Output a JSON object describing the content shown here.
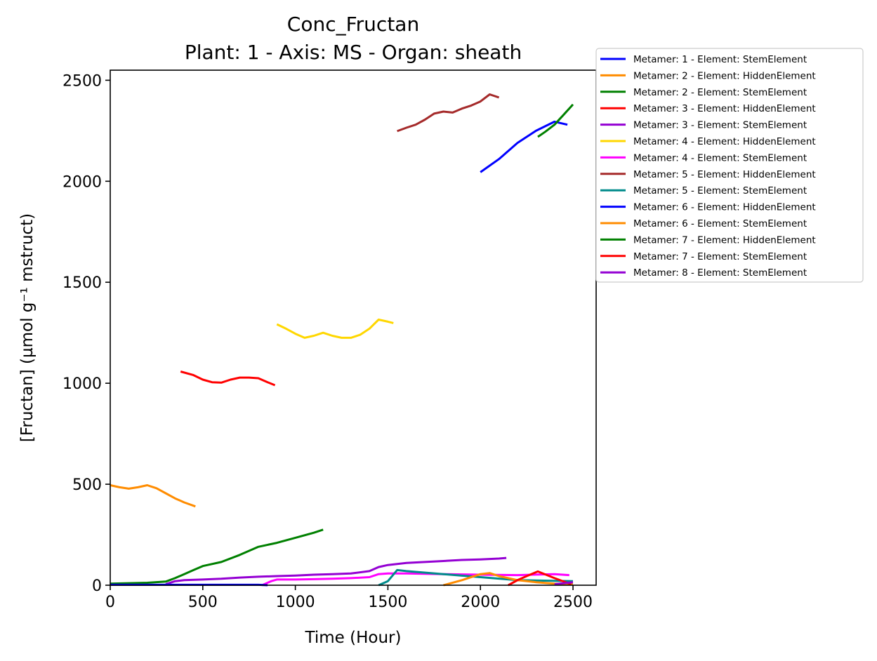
{
  "chart_data": {
    "type": "line",
    "title": "Conc_Fructan",
    "subtitle": "Plant: 1 - Axis: MS - Organ: sheath",
    "xlabel": "Time (Hour)",
    "ylabel": "[Fructan] (µmol g⁻¹ mstruct)",
    "xlim": [
      0,
      2625
    ],
    "ylim": [
      0,
      2550
    ],
    "xticks": [
      0,
      500,
      1000,
      1500,
      2000,
      2500
    ],
    "yticks": [
      0,
      500,
      1000,
      1500,
      2000,
      2500
    ],
    "grid": false,
    "legend_position": "outside-top-right",
    "series": [
      {
        "name": "Metamer: 1 - Element: StemElement",
        "color": "#0000ff",
        "x": [
          2000,
          2100,
          2200,
          2300,
          2400,
          2470
        ],
        "y": [
          2045,
          2110,
          2190,
          2250,
          2295,
          2280
        ]
      },
      {
        "name": "Metamer: 2 - Element: HiddenElement",
        "color": "#ff8c00",
        "x": [
          0,
          50,
          100,
          150,
          200,
          250,
          300,
          350,
          400,
          460
        ],
        "y": [
          495,
          485,
          478,
          485,
          495,
          480,
          455,
          430,
          410,
          390
        ]
      },
      {
        "name": "Metamer: 2 - Element: StemElement",
        "color": "#008000",
        "x": [
          0,
          100,
          200,
          300,
          350,
          400,
          450,
          500,
          600,
          700,
          800,
          900,
          1000,
          1100,
          1150
        ],
        "y": [
          8,
          10,
          12,
          18,
          35,
          55,
          75,
          95,
          115,
          150,
          190,
          210,
          235,
          260,
          275
        ]
      },
      {
        "name": "Metamer: 3 - Element: HiddenElement",
        "color": "#ff0000",
        "x": [
          380,
          450,
          500,
          550,
          600,
          650,
          700,
          750,
          800,
          850,
          890
        ],
        "y": [
          1058,
          1040,
          1018,
          1005,
          1003,
          1018,
          1028,
          1028,
          1025,
          1005,
          990
        ]
      },
      {
        "name": "Metamer: 3 - Element: StemElement",
        "color": "#9400d3",
        "x": [
          300,
          350,
          400,
          500,
          600,
          700,
          800,
          900,
          1000,
          1100,
          1200,
          1300,
          1400,
          1450,
          1500,
          1600,
          1700,
          1800,
          1900,
          2000,
          2100,
          2140
        ],
        "y": [
          5,
          20,
          25,
          28,
          32,
          38,
          42,
          45,
          48,
          52,
          55,
          58,
          70,
          90,
          100,
          110,
          115,
          120,
          125,
          128,
          132,
          135
        ]
      },
      {
        "name": "Metamer: 4 - Element: HiddenElement",
        "color": "#ffd700",
        "x": [
          900,
          950,
          1000,
          1050,
          1100,
          1150,
          1200,
          1250,
          1300,
          1350,
          1400,
          1450,
          1500,
          1530
        ],
        "y": [
          1292,
          1270,
          1245,
          1225,
          1235,
          1250,
          1235,
          1225,
          1225,
          1240,
          1270,
          1315,
          1305,
          1298
        ]
      },
      {
        "name": "Metamer: 4 - Element: StemElement",
        "color": "#ff00ff",
        "x": [
          820,
          870,
          900,
          1000,
          1100,
          1200,
          1300,
          1400,
          1450,
          1500,
          1600,
          1800,
          2000,
          2200,
          2400,
          2480
        ],
        "y": [
          0,
          20,
          28,
          28,
          30,
          32,
          35,
          40,
          55,
          58,
          58,
          55,
          52,
          50,
          55,
          50
        ]
      },
      {
        "name": "Metamer: 5 - Element: HiddenElement",
        "color": "#a52a2a",
        "x": [
          1550,
          1600,
          1650,
          1700,
          1750,
          1800,
          1850,
          1900,
          1950,
          2000,
          2050,
          2100
        ],
        "y": [
          2248,
          2265,
          2280,
          2305,
          2335,
          2345,
          2340,
          2360,
          2375,
          2395,
          2430,
          2415
        ]
      },
      {
        "name": "Metamer: 5 - Element: StemElement",
        "color": "#008b8b",
        "x": [
          1450,
          1500,
          1550,
          1600,
          1800,
          2000,
          2200,
          2400,
          2500
        ],
        "y": [
          0,
          20,
          75,
          70,
          55,
          40,
          25,
          22,
          20
        ]
      },
      {
        "name": "Metamer: 6 - Element: HiddenElement",
        "color": "#0000ff",
        "x": [
          0,
          200,
          400,
          600,
          800,
          850
        ],
        "y": [
          2,
          2,
          2,
          2,
          2,
          0
        ]
      },
      {
        "name": "Metamer: 6 - Element: StemElement",
        "color": "#ff8c00",
        "x": [
          1800,
          1900,
          2000,
          2050,
          2100,
          2200,
          2300,
          2400,
          2500
        ],
        "y": [
          0,
          25,
          55,
          60,
          45,
          25,
          15,
          8,
          5
        ]
      },
      {
        "name": "Metamer: 7 - Element: HiddenElement",
        "color": "#008000",
        "x": [
          2310,
          2350,
          2400,
          2450,
          2500
        ],
        "y": [
          2220,
          2245,
          2280,
          2330,
          2380
        ]
      },
      {
        "name": "Metamer: 7 - Element: StemElement",
        "color": "#ff0000",
        "x": [
          2150,
          2200,
          2250,
          2310,
          2400,
          2490
        ],
        "y": [
          0,
          25,
          45,
          68,
          35,
          5
        ]
      },
      {
        "name": "Metamer: 8 - Element: StemElement",
        "color": "#9400d3",
        "x": [
          2400,
          2450,
          2500
        ],
        "y": [
          5,
          10,
          15
        ]
      }
    ]
  }
}
